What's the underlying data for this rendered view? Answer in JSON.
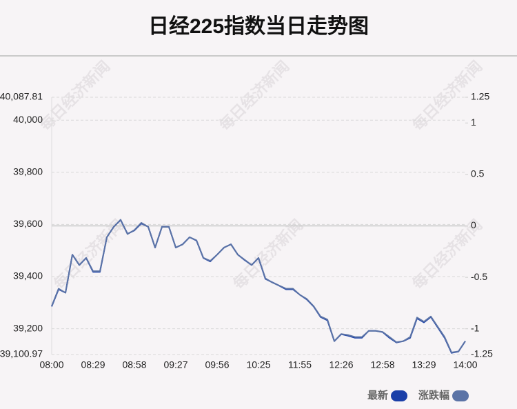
{
  "chart_data": {
    "type": "line",
    "title": "日经225指数当日走势图",
    "watermark": "每日经济新闻",
    "categories": [
      "08:00",
      null,
      null,
      null,
      null,
      null,
      "08:29",
      null,
      null,
      null,
      null,
      null,
      "08:58",
      null,
      null,
      null,
      null,
      null,
      "09:27",
      null,
      null,
      null,
      null,
      null,
      "09:56",
      null,
      null,
      null,
      null,
      null,
      "10:25",
      null,
      null,
      null,
      null,
      null,
      "11:55",
      null,
      null,
      null,
      null,
      null,
      "12:26",
      null,
      null,
      null,
      null,
      null,
      "12:58",
      null,
      null,
      null,
      null,
      null,
      "13:29",
      null,
      null,
      null,
      null,
      null,
      "14:00"
    ],
    "series": [
      {
        "name": "最新",
        "color": "#1a3fa8",
        "values": [
          39285,
          39351,
          39338,
          39484,
          39444,
          39471,
          39418,
          39418,
          39551,
          39591,
          39617,
          39564,
          39577,
          39604,
          39591,
          39511,
          39591,
          39591,
          39511,
          39524,
          39551,
          39538,
          39471,
          39458,
          39484,
          39511,
          39524,
          39484,
          39463,
          39444,
          39471,
          39391,
          39378,
          39365,
          39351,
          39351,
          39330,
          39312,
          39285,
          39245,
          39232,
          39152,
          39179,
          39173,
          39165,
          39165,
          39192,
          39192,
          39187,
          39165,
          39147,
          39152,
          39165,
          39240,
          39224,
          39245,
          39205,
          39165,
          39107,
          39112,
          39152
        ]
      },
      {
        "name": "涨跌幅",
        "color": "#5b73a6",
        "axis": "y2",
        "values": [
          -0.78,
          -0.61,
          -0.65,
          -0.28,
          -0.38,
          -0.31,
          -0.44,
          -0.44,
          -0.11,
          -0.01,
          0.06,
          -0.08,
          -0.04,
          0.03,
          -0.01,
          -0.21,
          -0.01,
          -0.01,
          -0.21,
          -0.18,
          -0.11,
          -0.14,
          -0.31,
          -0.34,
          -0.28,
          -0.21,
          -0.18,
          -0.28,
          -0.33,
          -0.38,
          -0.31,
          -0.51,
          -0.55,
          -0.58,
          -0.61,
          -0.61,
          -0.67,
          -0.71,
          -0.78,
          -0.88,
          -0.91,
          -1.12,
          -1.05,
          -1.06,
          -1.08,
          -1.08,
          -1.02,
          -1.02,
          -1.03,
          -1.08,
          -1.13,
          -1.12,
          -1.08,
          -0.89,
          -0.93,
          -0.88,
          -0.98,
          -1.08,
          -1.23,
          -1.22,
          -1.12
        ]
      }
    ],
    "ylim": [
      39100.97,
      40087.81
    ],
    "yticks": [
      {
        "value": 40087.81,
        "label": "40,087.81"
      },
      {
        "value": 40000,
        "label": "40,000"
      },
      {
        "value": 39800,
        "label": "39,800"
      },
      {
        "value": 39600,
        "label": "39,600"
      },
      {
        "value": 39400,
        "label": "39,400"
      },
      {
        "value": 39200,
        "label": "39,200"
      },
      {
        "value": 39100.97,
        "label": "39,100.97"
      }
    ],
    "y2lim": [
      -1.25,
      1.25
    ],
    "y2ticks": [
      1.25,
      1,
      0.5,
      0,
      -0.5,
      -1,
      -1.25
    ],
    "grid": true
  }
}
